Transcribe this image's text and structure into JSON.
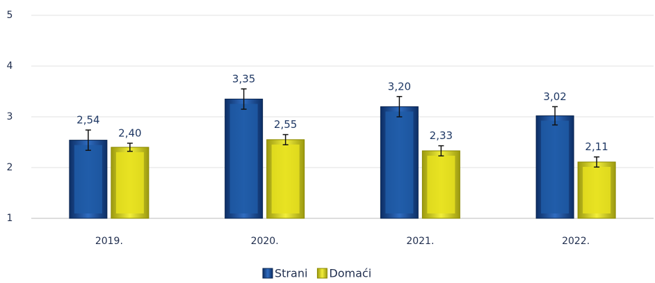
{
  "chart_data": {
    "type": "bar",
    "categories": [
      "2019.",
      "2020.",
      "2021.",
      "2022."
    ],
    "series": [
      {
        "name": "Strani",
        "color": "#1f5aa6",
        "values": [
          2.54,
          3.35,
          3.2,
          3.02
        ],
        "value_labels": [
          "2,54",
          "3,35",
          "3,20",
          "3,02"
        ],
        "errors": [
          0.2,
          0.2,
          0.2,
          0.18
        ]
      },
      {
        "name": "Domaći",
        "color": "#e6e01e",
        "values": [
          2.4,
          2.55,
          2.33,
          2.11
        ],
        "value_labels": [
          "2,40",
          "2,55",
          "2,33",
          "2,11"
        ],
        "errors": [
          0.08,
          0.1,
          0.1,
          0.1
        ]
      }
    ],
    "ylim": [
      1,
      5
    ],
    "yticks": [
      1,
      2,
      3,
      4,
      5
    ],
    "grid": true,
    "legend": "bottom"
  }
}
